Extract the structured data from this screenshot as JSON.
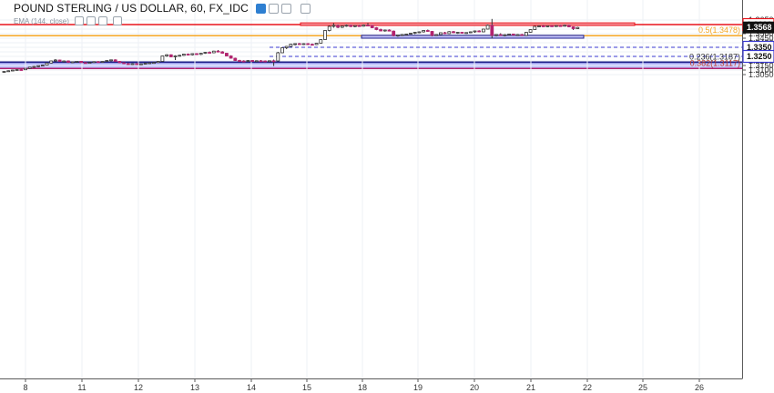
{
  "header": {
    "title": "POUND STERLING / US DOLLAR, 60, FX_IDC",
    "ema_label": "EMA (144, close)"
  },
  "colors": {
    "bull": "#ffffff",
    "bear": "#b2236f",
    "wick": "#333333",
    "resistance_line": "#e8131b",
    "fib_line": "#f5a623",
    "support_zone_fill": "#b7baff",
    "support_zone_stroke": "#20208a",
    "resistance_zone_fill": "#f6a0a7",
    "dashed_line": "#3a3ad0"
  },
  "chart_data": {
    "type": "candlestick",
    "title": "POUND STERLING / US DOLLAR, 60, FX_IDC",
    "y_ticks": [
      "1.3650",
      "1.3600",
      "1.3550",
      "1.3500",
      "1.3450",
      "1.3400",
      "1.3350",
      "1.3300",
      "1.3250",
      "1.3200",
      "1.3150",
      "1.3100",
      "1.3050"
    ],
    "x_ticks": [
      "8",
      "11",
      "12",
      "13",
      "14",
      "15",
      "18",
      "19",
      "20",
      "21",
      "22",
      "25",
      "26"
    ],
    "ylim": [
      1.3025,
      1.368
    ],
    "levels": [
      {
        "value": 1.36,
        "label": "1.3600",
        "kind": "resistance"
      },
      {
        "value": 1.3478,
        "label": "0.5(1.3478)",
        "kind": "fib"
      },
      {
        "value": 1.335,
        "label": "1.3350",
        "kind": "dashed"
      },
      {
        "value": 1.325,
        "label": "1.3250",
        "kind": "dashed"
      },
      {
        "value": 1.3187,
        "label": "0.236(1.3187)",
        "kind": "fib"
      },
      {
        "value": 1.3117,
        "label": "0.382(1.3117)",
        "kind": "fib"
      }
    ],
    "last_price": {
      "value": 1.3568,
      "label": "1.3568"
    },
    "zones": [
      {
        "name": "resistance-zone",
        "top": 1.3619,
        "bottom": 1.359,
        "from_day": "15",
        "to_day": "22"
      },
      {
        "name": "support-zone-upper",
        "top": 1.3482,
        "bottom": 1.345,
        "from_day": "18",
        "to_day": "21"
      },
      {
        "name": "support-zone-lower",
        "top": 1.3187,
        "bottom": 1.3117,
        "from_day": "8",
        "to_day": "26"
      }
    ],
    "series": [
      {
        "values": [
          [
            1.3078,
            1.3088,
            1.307,
            1.3085
          ],
          [
            1.3085,
            1.3097,
            1.308,
            1.3092
          ],
          [
            1.3092,
            1.3104,
            1.3088,
            1.31
          ],
          [
            1.31,
            1.3108,
            1.3095,
            1.3105
          ],
          [
            1.3105,
            1.3112,
            1.3098,
            1.3103
          ],
          [
            1.3103,
            1.312,
            1.31,
            1.3118
          ],
          [
            1.3118,
            1.3135,
            1.311,
            1.3132
          ],
          [
            1.3132,
            1.3145,
            1.3125,
            1.314
          ],
          [
            1.314,
            1.315,
            1.313,
            1.3148
          ],
          [
            1.3148,
            1.3158,
            1.3142,
            1.3154
          ],
          [
            1.3154,
            1.318,
            1.315,
            1.3177
          ],
          [
            1.3177,
            1.3205,
            1.3172,
            1.32
          ],
          [
            1.32,
            1.322,
            1.319,
            1.321
          ],
          [
            1.321,
            1.3214,
            1.319,
            1.3195
          ],
          [
            1.3195,
            1.3205,
            1.3185,
            1.32
          ],
          [
            1.32,
            1.3206,
            1.3178,
            1.3185
          ],
          [
            1.3185,
            1.3195,
            1.3178,
            1.319
          ],
          [
            1.319,
            1.32,
            1.3182,
            1.3196
          ],
          [
            1.3196,
            1.32,
            1.3178,
            1.3182
          ],
          [
            1.3182,
            1.319,
            1.317,
            1.3175
          ],
          [
            1.3175,
            1.3188,
            1.3172,
            1.3184
          ],
          [
            1.3184,
            1.3196,
            1.318,
            1.3192
          ],
          [
            1.3192,
            1.32,
            1.3182,
            1.3186
          ],
          [
            1.3186,
            1.3198,
            1.318,
            1.3195
          ],
          [
            1.3195,
            1.321,
            1.319,
            1.3205
          ],
          [
            1.3205,
            1.3215,
            1.3195,
            1.3212
          ],
          [
            1.3212,
            1.3218,
            1.3192,
            1.3195
          ],
          [
            1.3195,
            1.32,
            1.3175,
            1.318
          ],
          [
            1.318,
            1.3185,
            1.3165,
            1.317
          ],
          [
            1.317,
            1.3178,
            1.316,
            1.3165
          ],
          [
            1.3165,
            1.3175,
            1.3158,
            1.317
          ],
          [
            1.317,
            1.3176,
            1.3158,
            1.3162
          ],
          [
            1.3162,
            1.3172,
            1.3155,
            1.3168
          ],
          [
            1.3168,
            1.3178,
            1.316,
            1.3175
          ],
          [
            1.3175,
            1.3183,
            1.3168,
            1.318
          ],
          [
            1.318,
            1.3186,
            1.3172,
            1.3183
          ],
          [
            1.3183,
            1.32,
            1.3178,
            1.3195
          ],
          [
            1.3195,
            1.326,
            1.319,
            1.3255
          ],
          [
            1.3255,
            1.3275,
            1.3245,
            1.3268
          ],
          [
            1.3268,
            1.3272,
            1.324,
            1.3245
          ],
          [
            1.3245,
            1.3262,
            1.321,
            1.3255
          ],
          [
            1.3255,
            1.3268,
            1.3248,
            1.3262
          ],
          [
            1.3262,
            1.328,
            1.3255,
            1.3275
          ],
          [
            1.3275,
            1.3282,
            1.3262,
            1.3268
          ],
          [
            1.3268,
            1.3285,
            1.326,
            1.328
          ],
          [
            1.328,
            1.3286,
            1.3268,
            1.3272
          ],
          [
            1.3272,
            1.329,
            1.3265,
            1.3285
          ],
          [
            1.3285,
            1.33,
            1.3278,
            1.3295
          ],
          [
            1.3295,
            1.3305,
            1.3285,
            1.329
          ],
          [
            1.329,
            1.3312,
            1.3285,
            1.3308
          ],
          [
            1.3308,
            1.332,
            1.3295,
            1.33
          ],
          [
            1.33,
            1.3308,
            1.328,
            1.3285
          ],
          [
            1.3285,
            1.329,
            1.325,
            1.3255
          ],
          [
            1.3255,
            1.3262,
            1.3225,
            1.323
          ],
          [
            1.323,
            1.3236,
            1.32,
            1.3205
          ],
          [
            1.3205,
            1.3212,
            1.3188,
            1.32
          ],
          [
            1.32,
            1.3208,
            1.3192,
            1.3196
          ],
          [
            1.3196,
            1.321,
            1.319,
            1.3205
          ],
          [
            1.3205,
            1.321,
            1.3195,
            1.3198
          ],
          [
            1.3198,
            1.3206,
            1.319,
            1.3202
          ],
          [
            1.3202,
            1.321,
            1.3195,
            1.32
          ],
          [
            1.32,
            1.3206,
            1.3188,
            1.3195
          ],
          [
            1.3195,
            1.3205,
            1.319,
            1.3202
          ],
          [
            1.3202,
            1.3215,
            1.3145,
            1.32
          ],
          [
            1.32,
            1.33,
            1.3195,
            1.329
          ],
          [
            1.329,
            1.335,
            1.3285,
            1.3345
          ],
          [
            1.3345,
            1.3365,
            1.333,
            1.336
          ],
          [
            1.336,
            1.339,
            1.335,
            1.3385
          ],
          [
            1.3385,
            1.3395,
            1.337,
            1.339
          ],
          [
            1.339,
            1.3398,
            1.3378,
            1.3384
          ],
          [
            1.3384,
            1.3395,
            1.3376,
            1.339
          ],
          [
            1.339,
            1.3396,
            1.3378,
            1.3383
          ],
          [
            1.3383,
            1.3392,
            1.3372,
            1.338
          ],
          [
            1.338,
            1.34,
            1.3375,
            1.3395
          ],
          [
            1.3395,
            1.344,
            1.339,
            1.3435
          ],
          [
            1.3435,
            1.354,
            1.343,
            1.3535
          ],
          [
            1.3535,
            1.359,
            1.3525,
            1.358
          ],
          [
            1.358,
            1.3615,
            1.3565,
            1.359
          ],
          [
            1.359,
            1.36,
            1.356,
            1.357
          ],
          [
            1.357,
            1.359,
            1.3562,
            1.3585
          ],
          [
            1.3585,
            1.36,
            1.3575,
            1.3592
          ],
          [
            1.3592,
            1.3598,
            1.3572,
            1.3578
          ],
          [
            1.3578,
            1.3592,
            1.357,
            1.3588
          ],
          [
            1.3588,
            1.3596,
            1.3578,
            1.3582
          ],
          [
            1.3582,
            1.36,
            1.3576,
            1.3594
          ],
          [
            1.3594,
            1.3616,
            1.3585,
            1.359
          ],
          [
            1.359,
            1.3594,
            1.356,
            1.3565
          ],
          [
            1.3565,
            1.3572,
            1.3538,
            1.3545
          ],
          [
            1.3545,
            1.3555,
            1.3525,
            1.353
          ],
          [
            1.353,
            1.3545,
            1.3522,
            1.354
          ],
          [
            1.354,
            1.3548,
            1.3525,
            1.3528
          ],
          [
            1.3528,
            1.3535,
            1.347,
            1.3478
          ],
          [
            1.3478,
            1.349,
            1.3465,
            1.3485
          ],
          [
            1.3485,
            1.3495,
            1.3475,
            1.349
          ],
          [
            1.349,
            1.35,
            1.348,
            1.3495
          ],
          [
            1.3495,
            1.351,
            1.349,
            1.3505
          ],
          [
            1.3505,
            1.352,
            1.3495,
            1.3515
          ],
          [
            1.3515,
            1.3525,
            1.3505,
            1.352
          ],
          [
            1.352,
            1.354,
            1.3512,
            1.3535
          ],
          [
            1.3535,
            1.3545,
            1.352,
            1.3525
          ],
          [
            1.3525,
            1.353,
            1.347,
            1.348
          ],
          [
            1.348,
            1.3495,
            1.3475,
            1.349
          ],
          [
            1.349,
            1.3515,
            1.3485,
            1.351
          ],
          [
            1.351,
            1.352,
            1.3495,
            1.35
          ],
          [
            1.35,
            1.3528,
            1.3495,
            1.3522
          ],
          [
            1.3522,
            1.353,
            1.3505,
            1.351
          ],
          [
            1.351,
            1.352,
            1.3498,
            1.3515
          ],
          [
            1.3515,
            1.3518,
            1.35,
            1.3505
          ],
          [
            1.3505,
            1.3515,
            1.3498,
            1.3512
          ],
          [
            1.3512,
            1.3525,
            1.3505,
            1.352
          ],
          [
            1.352,
            1.3535,
            1.351,
            1.353
          ],
          [
            1.353,
            1.3538,
            1.3515,
            1.352
          ],
          [
            1.352,
            1.3555,
            1.3515,
            1.355
          ],
          [
            1.355,
            1.36,
            1.3545,
            1.3592
          ],
          [
            1.3592,
            1.3662,
            1.345,
            1.348
          ],
          [
            1.348,
            1.3495,
            1.347,
            1.349
          ],
          [
            1.349,
            1.3505,
            1.3478,
            1.3482
          ],
          [
            1.3482,
            1.3495,
            1.347,
            1.3488
          ],
          [
            1.3488,
            1.35,
            1.3482,
            1.3495
          ],
          [
            1.3495,
            1.35,
            1.3478,
            1.3485
          ],
          [
            1.3485,
            1.3495,
            1.3476,
            1.349
          ],
          [
            1.349,
            1.3498,
            1.3475,
            1.348
          ],
          [
            1.348,
            1.352,
            1.3475,
            1.3515
          ],
          [
            1.3515,
            1.355,
            1.351,
            1.3545
          ],
          [
            1.3545,
            1.3585,
            1.354,
            1.358
          ],
          [
            1.358,
            1.3592,
            1.357,
            1.3585
          ],
          [
            1.3585,
            1.3595,
            1.3575,
            1.358
          ],
          [
            1.358,
            1.359,
            1.3572,
            1.3586
          ],
          [
            1.3586,
            1.3592,
            1.3578,
            1.3582
          ],
          [
            1.3582,
            1.3592,
            1.3576,
            1.3588
          ],
          [
            1.3588,
            1.3595,
            1.358,
            1.3584
          ],
          [
            1.3584,
            1.3598,
            1.3578,
            1.3592
          ],
          [
            1.3592,
            1.3598,
            1.357,
            1.3575
          ],
          [
            1.3575,
            1.358,
            1.354,
            1.3555
          ],
          [
            1.3555,
            1.3575,
            1.355,
            1.3568
          ]
        ]
      }
    ]
  }
}
